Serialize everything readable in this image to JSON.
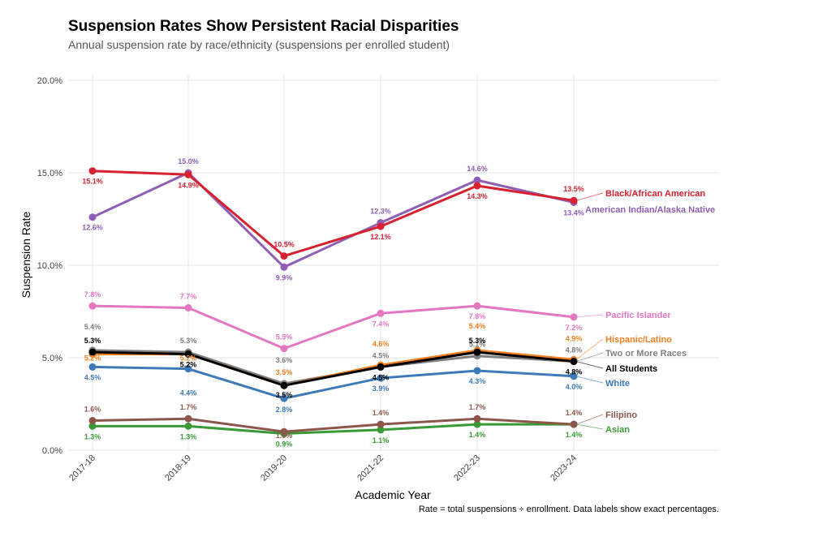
{
  "chart_data": {
    "type": "line",
    "title": "Suspension Rates Show Persistent Racial Disparities",
    "subtitle": "Annual suspension rate by race/ethnicity (suspensions per enrolled student)",
    "xlabel": "Academic Year",
    "ylabel": "Suspension Rate",
    "caption": "Rate = total suspensions ÷ enrollment. Data labels show exact percentages.",
    "categories": [
      "2017-18",
      "2018-19",
      "2019-20",
      "2021-22",
      "2022-23",
      "2023-24"
    ],
    "ylim": [
      0,
      20
    ],
    "yticks": [
      0,
      5,
      10,
      15,
      20
    ],
    "ytick_labels": [
      "0.0%",
      "5.0%",
      "10.0%",
      "15.0%",
      "20.0%"
    ],
    "grid": true,
    "series": [
      {
        "name": "American Indian/Alaska Native",
        "color": "#8f5fb5",
        "values": [
          12.6,
          15.0,
          9.9,
          12.3,
          14.6,
          13.4
        ],
        "labels": [
          "12.6%",
          "15.0%",
          "9.9%",
          "12.3%",
          "14.6%",
          "13.4%"
        ]
      },
      {
        "name": "Black/African American",
        "color": "#d62230",
        "values": [
          15.1,
          14.9,
          10.5,
          12.1,
          14.3,
          13.5
        ],
        "labels": [
          "15.1%",
          "14.9%",
          "10.5%",
          "12.1%",
          "14.3%",
          "13.5%"
        ]
      },
      {
        "name": "Pacific Islander",
        "color": "#e377c2",
        "values": [
          7.8,
          7.7,
          5.5,
          7.4,
          7.8,
          7.2
        ],
        "labels": [
          "7.8%",
          "7.7%",
          "5.5%",
          "7.4%",
          "7.8%",
          "7.2%"
        ]
      },
      {
        "name": "Two or More Races",
        "color": "#7f7f7f",
        "values": [
          5.4,
          5.3,
          3.6,
          4.5,
          5.1,
          4.8
        ],
        "labels": [
          "5.4%",
          "5.3%",
          "3.6%",
          "4.5%",
          "5.1%",
          "4.8%"
        ]
      },
      {
        "name": "Hispanic/Latino",
        "color": "#f28020",
        "values": [
          5.2,
          5.2,
          3.5,
          4.6,
          5.4,
          4.9
        ],
        "labels": [
          "5.2%",
          "5.2%",
          "3.5%",
          "4.6%",
          "5.4%",
          "4.9%"
        ]
      },
      {
        "name": "All Students",
        "color": "#000000",
        "values": [
          5.3,
          5.2,
          3.5,
          4.5,
          5.3,
          4.8
        ],
        "labels": [
          "5.3%",
          "5.2%",
          "3.5%",
          "4.5%",
          "5.3%",
          "4.8%"
        ]
      },
      {
        "name": "White",
        "color": "#3f7ab8",
        "values": [
          4.5,
          4.4,
          2.8,
          3.9,
          4.3,
          4.0
        ],
        "labels": [
          "4.5%",
          "4.4%",
          "2.8%",
          "3.9%",
          "4.3%",
          "4.0%"
        ]
      },
      {
        "name": "Filipino",
        "color": "#8c564b",
        "values": [
          1.6,
          1.7,
          1.0,
          1.4,
          1.7,
          1.4
        ],
        "labels": [
          "1.6%",
          "1.7%",
          "1.0%",
          "1.4%",
          "1.7%",
          "1.4%"
        ]
      },
      {
        "name": "Asian",
        "color": "#3a9b36",
        "values": [
          1.3,
          1.3,
          0.9,
          1.1,
          1.4,
          1.4
        ],
        "labels": [
          "1.3%",
          "1.3%",
          "0.9%",
          "1.1%",
          "1.4%",
          "1.4%"
        ]
      }
    ]
  }
}
